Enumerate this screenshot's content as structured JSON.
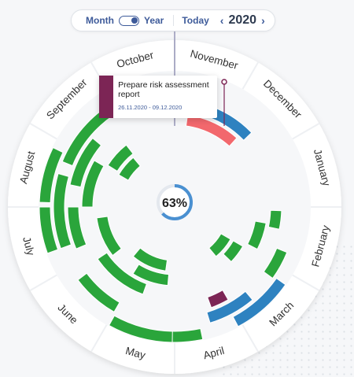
{
  "toolbar": {
    "month_label": "Month",
    "year_label": "Year",
    "today_label": "Today",
    "year_value": "2020",
    "prev_icon": "chevron-left-icon",
    "next_icon": "chevron-right-icon"
  },
  "colors": {
    "green": "#2aa53b",
    "blue": "#2e82c0",
    "red": "#f2686d",
    "maroon": "#7c2555",
    "accent": "#3e5b9a"
  },
  "progress": {
    "label": "63%",
    "value": 0.63
  },
  "tooltip": {
    "title": "Prepare risk assessment report",
    "dates": "26.11.2020 - 09.12.2020"
  },
  "months": [
    "October",
    "November",
    "December",
    "January",
    "February",
    "March",
    "April",
    "May",
    "June",
    "July",
    "August",
    "September"
  ],
  "tasks": [
    {
      "ri": 1,
      "ro": 19,
      "s": 125,
      "e": 152,
      "c": "blue"
    },
    {
      "ri": 1,
      "ro": 19,
      "s": 72,
      "e": 103,
      "c": "green"
    },
    {
      "ri": 1,
      "ro": 19,
      "s": 181,
      "e": 209,
      "c": "green"
    },
    {
      "ri": 1,
      "ro": 19,
      "s": 210,
      "e": 242,
      "c": "green"
    },
    {
      "ri": 1,
      "ro": 19,
      "s": 243,
      "e": 273,
      "c": "green"
    },
    {
      "ri": 1,
      "ro": 19,
      "s": 274,
      "e": 305,
      "c": "green"
    },
    {
      "ri": 1,
      "ro": 19,
      "s": 306,
      "e": 335,
      "c": "green"
    },
    {
      "ri": 1,
      "ro": 19,
      "s": 336,
      "e": 354,
      "c": "green"
    },
    {
      "ri": 20,
      "ro": 38,
      "s": 140,
      "e": 163,
      "c": "blue"
    },
    {
      "ri": 20,
      "ro": 38,
      "s": 73,
      "e": 100,
      "c": "green"
    },
    {
      "ri": 20,
      "ro": 38,
      "s": 194,
      "e": 236,
      "c": "green"
    },
    {
      "ri": 20,
      "ro": 38,
      "s": 237,
      "e": 270,
      "c": "green"
    },
    {
      "ri": 20,
      "ro": 38,
      "s": 325,
      "e": 350,
      "c": "green"
    },
    {
      "ri": 39,
      "ro": 57,
      "s": 162,
      "e": 172,
      "c": "blue"
    },
    {
      "ri": 39,
      "ro": 57,
      "s": 48,
      "e": 81,
      "c": "green"
    },
    {
      "ri": 39,
      "ro": 57,
      "s": 215,
      "e": 240,
      "c": "green"
    },
    {
      "ri": 39,
      "ro": 57,
      "s": 272,
      "e": 296,
      "c": "green"
    },
    {
      "ri": 39,
      "ro": 57,
      "s": 320,
      "e": 350,
      "c": "green"
    },
    {
      "ri": 58,
      "ro": 76,
      "s": 150,
      "e": 160,
      "c": "maroon"
    },
    {
      "ri": 58,
      "ro": 76,
      "s": 185,
      "e": 212,
      "c": "green"
    },
    {
      "ri": 58,
      "ro": 76,
      "s": 257,
      "e": 283,
      "c": "green"
    },
    {
      "ri": 58,
      "ro": 76,
      "s": 302,
      "e": 322,
      "c": "green"
    },
    {
      "ri": 77,
      "ro": 95,
      "s": 8,
      "e": 42,
      "c": "red"
    },
    {
      "ri": 77,
      "ro": 95,
      "s": 100,
      "e": 117,
      "c": "green"
    },
    {
      "ri": 77,
      "ro": 95,
      "s": 245,
      "e": 260,
      "c": "green"
    },
    {
      "ri": 96,
      "ro": 112,
      "s": 0,
      "e": 0,
      "c": "green"
    }
  ],
  "extra_blocks": [
    {
      "ri": 60,
      "ro": 76,
      "s": 0,
      "e": 0,
      "c": "green"
    }
  ]
}
